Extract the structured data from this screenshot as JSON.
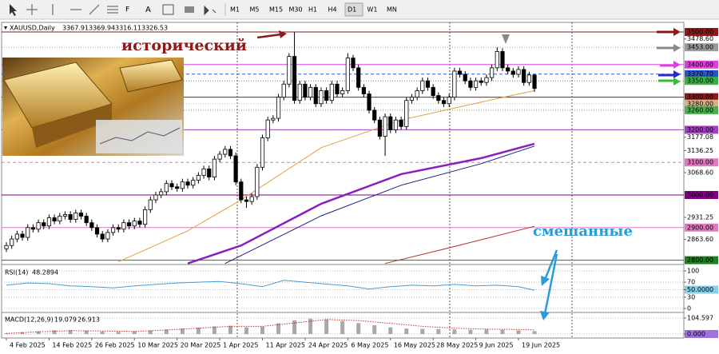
{
  "toolbar": {
    "timeframes": [
      "M1",
      "M5",
      "M15",
      "M30",
      "H1",
      "H4",
      "D1",
      "W1",
      "MN"
    ],
    "active": "D1"
  },
  "chart_data": [
    {
      "type": "candlestick",
      "title": "XAUUSD,Daily",
      "annotations": [
        "исторический",
        "смешанные"
      ],
      "xlim": [
        -0.9,
        127
      ],
      "ylim": [
        2789.2,
        3524.5
      ],
      "xticks": [
        {
          "value": 0,
          "label": "4 Feb 2025"
        },
        {
          "value": 8,
          "label": "14 Feb 2025"
        },
        {
          "value": 16,
          "label": "26 Feb 2025"
        },
        {
          "value": 24,
          "label": "10 Mar 2025"
        },
        {
          "value": 32,
          "label": "20 Mar 2025"
        },
        {
          "value": 40,
          "label": "1 Apr 2025"
        },
        {
          "value": 48,
          "label": "11 Apr 2025"
        },
        {
          "value": 56,
          "label": "24 Apr 2025"
        },
        {
          "value": 64,
          "label": "6 May 2025"
        },
        {
          "value": 72,
          "label": "16 May 2025"
        },
        {
          "value": 80,
          "label": "28 May 2025"
        },
        {
          "value": 88,
          "label": "9 Jun 2025"
        },
        {
          "value": 96,
          "label": "19 Jun 2025"
        }
      ],
      "yticks": [
        {
          "value": 3478.6,
          "label": "3478.60"
        },
        3177.08,
        3136.25,
        {
          "value": 3068.6,
          "label": "3068.60"
        },
        2931.25,
        {
          "value": 2863.6,
          "label": "2863.60"
        }
      ],
      "levels": [
        {
          "value": 3500,
          "label": "3500.00",
          "color": "#8b1a1a",
          "style": "solid"
        },
        {
          "value": 3453,
          "label": "3453.00",
          "color": "#9a9a9a",
          "style": "dotted"
        },
        {
          "value": 3400,
          "label": "3400.00",
          "color": "#e040e0",
          "style": "solid"
        },
        {
          "value": 3370.7,
          "label": "3370.70",
          "color": "#2a55c8",
          "style": "dashed"
        },
        {
          "value": 3350,
          "label": "3350.00",
          "color": "#3cb043",
          "style": "dotted"
        },
        {
          "value": 3300,
          "label": "3300.00",
          "color": "#8b1a1a",
          "style": "solid"
        },
        {
          "value": 3280,
          "label": "3280.00",
          "color": "#d2b48c",
          "style": "dotted"
        },
        {
          "value": 3260,
          "label": "3260.00",
          "color": "#4caf50",
          "style": "dotted"
        },
        {
          "value": 3200,
          "label": "3200.00",
          "color": "#a040c0",
          "style": "solid"
        },
        {
          "value": 3100,
          "label": "3100.00",
          "color": "#e07ac0",
          "style": "dashed"
        },
        {
          "value": 3000,
          "label": "3000.00",
          "color": "#800080",
          "style": "solid"
        },
        {
          "value": 2900,
          "label": "2900.00",
          "color": "#e07ac0",
          "style": "solid"
        },
        {
          "value": 2800,
          "label": "2800.00",
          "color": "#208020",
          "style": "solid"
        }
      ],
      "candles": {
        "open": [
          2835,
          2845,
          2865,
          2880,
          2870,
          2900,
          2895,
          2915,
          2905,
          2930,
          2920,
          2935,
          2940,
          2925,
          2945,
          2935,
          2915,
          2900,
          2880,
          2865,
          2885,
          2900,
          2895,
          2915,
          2905,
          2920,
          2910,
          2955,
          2985,
          3000,
          3010,
          3035,
          3025,
          3020,
          3040,
          3030,
          3045,
          3060,
          3080,
          3055,
          3110,
          3125,
          3140,
          3120,
          3040,
          2985,
          2980,
          2995,
          3085,
          3175,
          3230,
          3235,
          3300,
          3340,
          3425,
          3290,
          3340,
          3300,
          3330,
          3280,
          3320,
          3290,
          3340,
          3310,
          3320,
          3420,
          3390,
          3330,
          3310,
          3260,
          3230,
          3180,
          3240,
          3200,
          3230,
          3210,
          3290,
          3300,
          3320,
          3350,
          3330,
          3305,
          3290,
          3280,
          3300,
          3380,
          3370,
          3350,
          3330,
          3350,
          3345,
          3360,
          3390,
          3440,
          3390,
          3380,
          3370,
          3385,
          3345,
          3367.91
        ],
        "high": [
          2855,
          2875,
          2890,
          2890,
          2910,
          2910,
          2925,
          2925,
          2940,
          2940,
          2945,
          2950,
          2950,
          2955,
          2955,
          2945,
          2925,
          2910,
          2890,
          2895,
          2910,
          2910,
          2925,
          2925,
          2930,
          2930,
          2965,
          2995,
          3010,
          3020,
          3045,
          3045,
          3035,
          3050,
          3050,
          3055,
          3070,
          3090,
          3090,
          3120,
          3135,
          3150,
          3150,
          3130,
          3050,
          2995,
          3005,
          3095,
          3185,
          3240,
          3245,
          3310,
          3350,
          3435,
          3500,
          3350,
          3350,
          3340,
          3340,
          3330,
          3330,
          3350,
          3350,
          3330,
          3435,
          3430,
          3400,
          3340,
          3320,
          3270,
          3240,
          3250,
          3250,
          3240,
          3240,
          3300,
          3310,
          3330,
          3360,
          3360,
          3340,
          3315,
          3300,
          3310,
          3390,
          3390,
          3380,
          3360,
          3360,
          3360,
          3370,
          3400,
          3453,
          3450,
          3400,
          3390,
          3395,
          3395,
          3378,
          3369.94
        ],
        "low": [
          2825,
          2835,
          2855,
          2860,
          2860,
          2885,
          2885,
          2895,
          2895,
          2910,
          2910,
          2925,
          2915,
          2915,
          2925,
          2905,
          2890,
          2870,
          2855,
          2855,
          2875,
          2885,
          2885,
          2895,
          2895,
          2900,
          2900,
          2945,
          2975,
          2990,
          3000,
          3015,
          3010,
          3010,
          3020,
          3020,
          3035,
          3050,
          3045,
          3045,
          3100,
          3115,
          3110,
          3030,
          2975,
          2960,
          2970,
          2985,
          3075,
          3165,
          3220,
          3225,
          3290,
          3330,
          3280,
          3280,
          3290,
          3290,
          3270,
          3270,
          3280,
          3280,
          3300,
          3300,
          3310,
          3380,
          3320,
          3300,
          3250,
          3220,
          3170,
          3120,
          3190,
          3190,
          3200,
          3200,
          3280,
          3290,
          3310,
          3320,
          3295,
          3280,
          3270,
          3270,
          3290,
          3360,
          3340,
          3320,
          3320,
          3335,
          3335,
          3350,
          3380,
          3380,
          3370,
          3360,
          3360,
          3335,
          3335,
          3316.11
        ],
        "close": [
          2845,
          2865,
          2880,
          2870,
          2900,
          2895,
          2915,
          2905,
          2930,
          2920,
          2935,
          2940,
          2925,
          2945,
          2935,
          2915,
          2900,
          2880,
          2865,
          2885,
          2900,
          2895,
          2915,
          2905,
          2920,
          2910,
          2955,
          2985,
          3000,
          3010,
          3035,
          3025,
          3020,
          3040,
          3030,
          3045,
          3060,
          3080,
          3055,
          3110,
          3125,
          3140,
          3120,
          3040,
          2985,
          2980,
          2995,
          3085,
          3175,
          3230,
          3235,
          3300,
          3340,
          3425,
          3290,
          3340,
          3300,
          3330,
          3280,
          3320,
          3290,
          3340,
          3310,
          3320,
          3420,
          3390,
          3330,
          3310,
          3260,
          3230,
          3180,
          3240,
          3200,
          3230,
          3210,
          3290,
          3300,
          3320,
          3350,
          3330,
          3305,
          3290,
          3280,
          3300,
          3380,
          3370,
          3350,
          3330,
          3350,
          3345,
          3360,
          3390,
          3440,
          3390,
          3380,
          3370,
          3385,
          3345,
          3367.91,
          3326.53
        ]
      },
      "series": [
        {
          "color": "#e0a040",
          "width": 1,
          "x": [
            21,
            34,
            44,
            59,
            74,
            89,
            99
          ],
          "values": [
            2795,
            2890,
            2985,
            3145,
            3230,
            3285,
            3320
          ]
        },
        {
          "color": "#8a1fc0",
          "width": 2.5,
          "x": [
            34,
            44,
            59,
            74,
            89,
            99
          ],
          "values": [
            2790,
            2845,
            2973,
            3064,
            3113,
            3157
          ]
        },
        {
          "color": "#1a2080",
          "width": 1,
          "x": [
            41,
            59,
            74,
            89,
            99
          ],
          "values": [
            2790,
            2936,
            3030,
            3096,
            3150
          ]
        },
        {
          "color": "#b03030",
          "width": 1,
          "x": [
            71,
            83,
            99
          ],
          "values": [
            2790,
            2838,
            2904
          ]
        }
      ]
    },
    {
      "type": "line",
      "title": "RSI(14)",
      "color": "#4a9ccc",
      "xlim": [
        -0.9,
        127
      ],
      "ylim": [
        -8.5,
        112.8
      ],
      "yticks": [
        100,
        70,
        {
          "value": 50,
          "label": "50.0000",
          "color": "#87ceeb"
        },
        30,
        0
      ],
      "x": [
        0,
        4,
        8,
        12,
        16,
        20,
        24,
        28,
        32,
        36,
        40,
        44,
        48,
        52,
        56,
        60,
        64,
        68,
        72,
        76,
        80,
        84,
        88,
        92,
        96,
        99
      ],
      "values": [
        62,
        68,
        66,
        60,
        58,
        55,
        60,
        64,
        68,
        70,
        72,
        66,
        58,
        75,
        70,
        65,
        60,
        52,
        58,
        62,
        60,
        64,
        60,
        62,
        58,
        48.2894
      ]
    },
    {
      "type": "macd",
      "title": "MACD(12,26,9)",
      "xlim": [
        -0.9,
        127
      ],
      "ylim": [
        -20.9,
        136
      ],
      "yticks": [
        104.597,
        {
          "value": 0,
          "label": "0.000",
          "color": "#a070e0"
        }
      ],
      "histogram": {
        "color": "#a8a8a8",
        "x": [
          0,
          3,
          6,
          9,
          12,
          15,
          18,
          21,
          24,
          27,
          30,
          33,
          36,
          39,
          42,
          45,
          48,
          51,
          54,
          57,
          60,
          63,
          66,
          69,
          72,
          75,
          78,
          81,
          84,
          87,
          90,
          93,
          96,
          99
        ],
        "values": [
          5,
          12,
          18,
          24,
          26,
          22,
          16,
          14,
          18,
          24,
          30,
          36,
          42,
          50,
          54,
          44,
          48,
          70,
          90,
          100,
          96,
          84,
          72,
          58,
          44,
          36,
          34,
          32,
          30,
          28,
          30,
          28,
          24,
          19.079
        ]
      },
      "signal": {
        "color": "#c03030",
        "x": [
          0,
          6,
          12,
          18,
          24,
          30,
          36,
          42,
          48,
          54,
          60,
          66,
          72,
          78,
          84,
          90,
          96,
          99
        ],
        "values": [
          4,
          14,
          22,
          20,
          17,
          26,
          38,
          50,
          50,
          72,
          95,
          88,
          70,
          50,
          38,
          32,
          30,
          26.913
        ]
      }
    }
  ]
}
